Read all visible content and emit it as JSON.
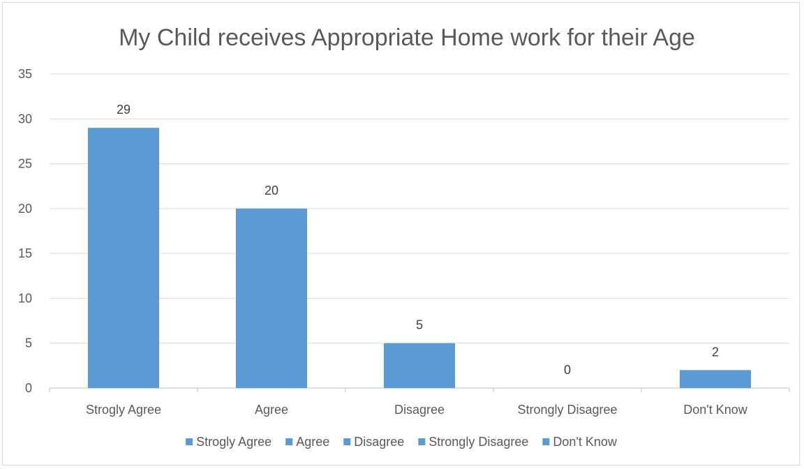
{
  "chart_data": {
    "type": "bar",
    "title": "My Child receives Appropriate Home work for their Age",
    "categories": [
      "Strogly Agree",
      "Agree",
      "Disagree",
      "Strongly Disagree",
      "Don't Know"
    ],
    "values": [
      29,
      20,
      5,
      0,
      2
    ],
    "data_labels": [
      "29",
      "20",
      "5",
      "0",
      "2"
    ],
    "ylim": [
      0,
      35
    ],
    "yticks": [
      "0",
      "5",
      "10",
      "15",
      "20",
      "25",
      "30",
      "35"
    ],
    "grid": true,
    "legend": {
      "placement": "bottom",
      "entries": [
        "Strogly Agree",
        "Agree",
        "Disagree",
        "Strongly Disagree",
        "Don't Know"
      ]
    },
    "colors": {
      "bar": "#5b9bd5",
      "grid": "#d9d9d9",
      "text": "#595959"
    }
  }
}
